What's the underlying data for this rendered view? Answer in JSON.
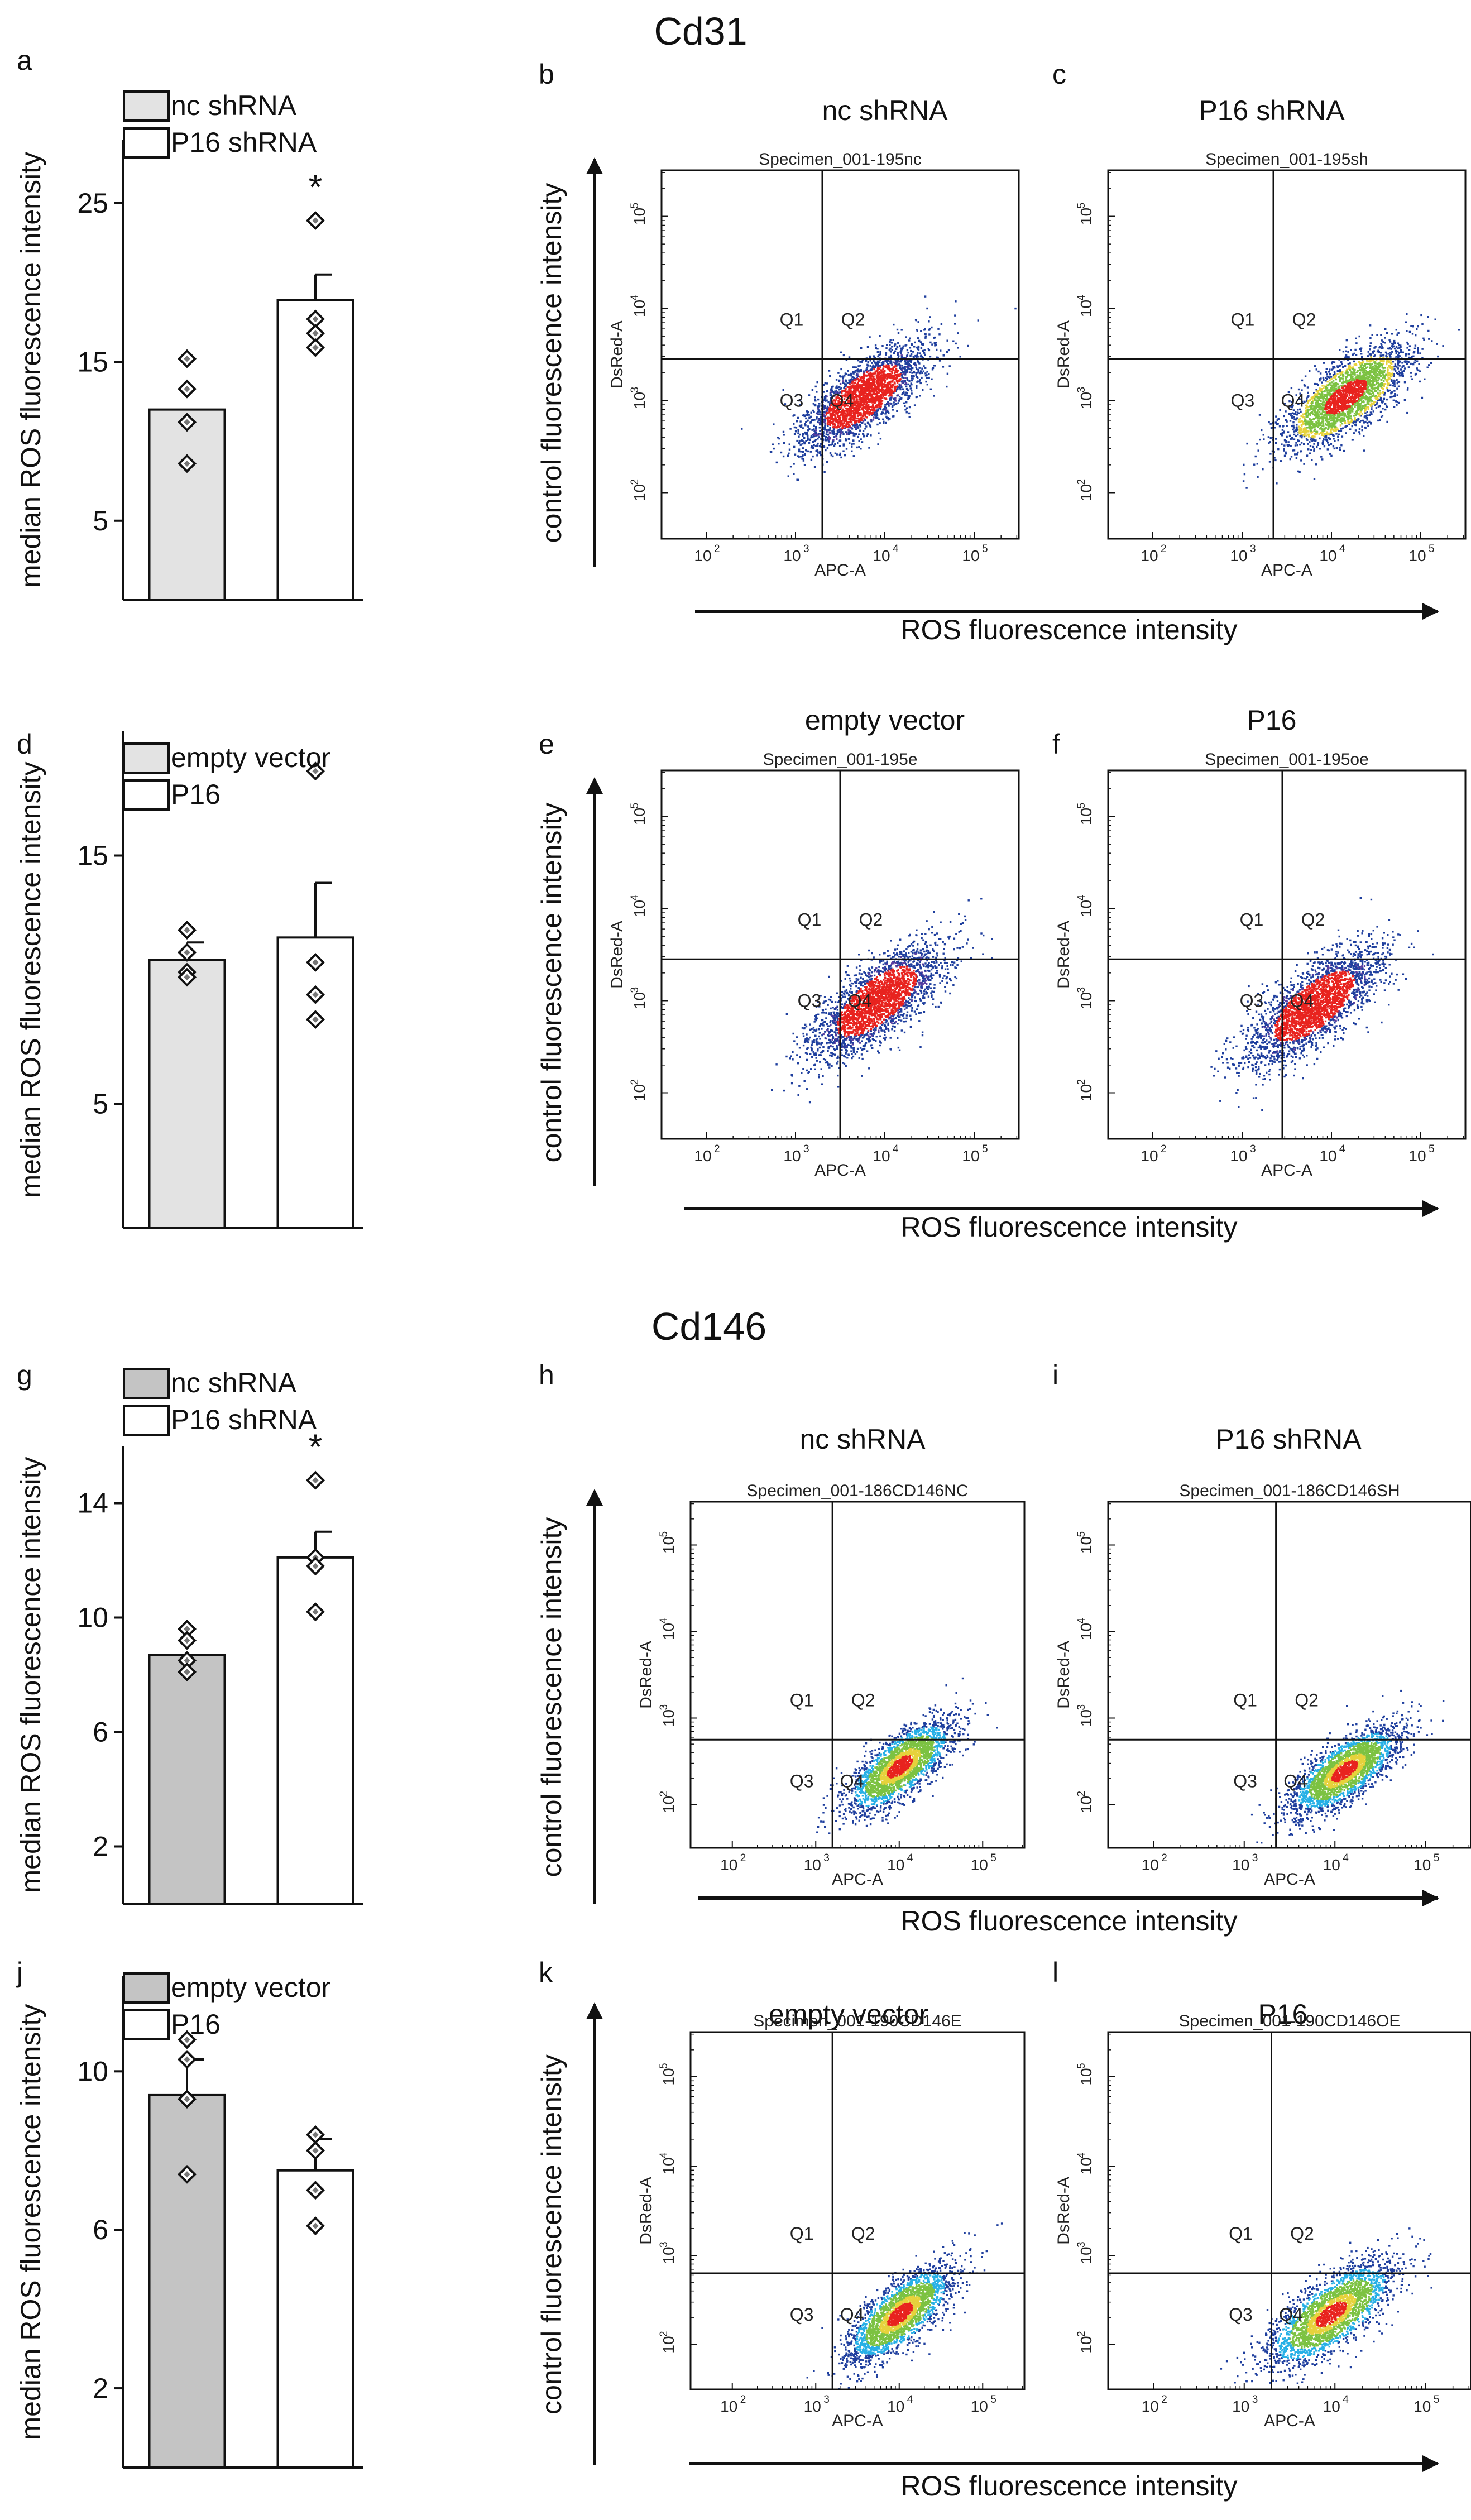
{
  "sections": [
    {
      "title": "Cd31"
    },
    {
      "title": "Cd146"
    }
  ],
  "shared": {
    "ylabel_bar": "median ROS fluorescence intensity",
    "flow_ylabel": "control fluorescence intensity",
    "flow_xlabel": "ROS fluorescence intensity",
    "channel_y": "DsRed-A",
    "channel_x": "APC-A",
    "quadrants": [
      "Q1",
      "Q2",
      "Q3",
      "Q4"
    ],
    "decade_ticks": [
      "2",
      "3",
      "4",
      "5"
    ]
  },
  "colors": {
    "bar_light": "#e3e3e3",
    "bar_mid": "#c4c4c4",
    "bar_white": "#ffffff",
    "dot_blue": "#1f3f9e",
    "dot_red": "#e8231f",
    "dot_green": "#7cc242",
    "dot_cyan": "#27b0e6",
    "dot_yellow": "#e6d23c"
  },
  "chart_data": [
    {
      "type": "bar",
      "panel": "a",
      "ylabel": "median ROS fluorescence intensity",
      "ylim": [
        0,
        29
      ],
      "yticks": [
        5,
        15,
        25
      ],
      "series": [
        {
          "name": "nc shRNA",
          "value": 12.0,
          "err": 0.0,
          "points": [
            15.2,
            13.3,
            11.2,
            8.6
          ],
          "color": "#e3e3e3"
        },
        {
          "name": "P16 shRNA",
          "value": 18.9,
          "err": 1.6,
          "points": [
            23.9,
            17.7,
            16.8,
            15.9
          ],
          "color": "#ffffff"
        }
      ],
      "annotations": [
        "",
        "*"
      ]
    },
    {
      "type": "scatter",
      "panel": "b",
      "label": "nc shRNA",
      "specimen": "Specimen_001-195nc",
      "palette": "redblue",
      "quadrant_gate": [
        3.3,
        3.45
      ],
      "center": [
        3.75,
        3.05
      ],
      "spread": 0.42,
      "slope": 0.75
    },
    {
      "type": "scatter",
      "panel": "c",
      "label": "P16 shRNA",
      "specimen": "Specimen_001-195sh",
      "palette": "greenred",
      "quadrant_gate": [
        3.35,
        3.45
      ],
      "center": [
        4.15,
        3.05
      ],
      "spread": 0.42,
      "slope": 0.75
    },
    {
      "type": "bar",
      "panel": "d",
      "ylabel": "median ROS fluorescence intensity",
      "ylim": [
        0,
        20
      ],
      "yticks": [
        5,
        15
      ],
      "series": [
        {
          "name": "empty vector",
          "value": 10.8,
          "err": 0.7,
          "points": [
            12.0,
            11.1,
            10.3,
            10.1
          ],
          "color": "#e3e3e3"
        },
        {
          "name": "P16",
          "value": 11.7,
          "err": 2.2,
          "points": [
            18.4,
            10.7,
            9.4,
            8.4
          ],
          "color": "#ffffff"
        }
      ],
      "annotations": [
        "",
        ""
      ]
    },
    {
      "type": "scatter",
      "panel": "e",
      "label": "empty vector",
      "specimen": "Specimen_001-195e",
      "palette": "redblue",
      "quadrant_gate": [
        3.5,
        3.45
      ],
      "center": [
        3.9,
        3.0
      ],
      "spread": 0.45,
      "slope": 0.8
    },
    {
      "type": "scatter",
      "panel": "f",
      "label": "P16",
      "specimen": "Specimen_001-195oe",
      "palette": "redblue",
      "quadrant_gate": [
        3.45,
        3.45
      ],
      "center": [
        3.8,
        2.95
      ],
      "spread": 0.45,
      "slope": 0.8
    },
    {
      "type": "bar",
      "panel": "g",
      "ylabel": "median ROS fluorescence intensity",
      "ylim": [
        0,
        16
      ],
      "yticks": [
        2,
        6,
        10,
        14
      ],
      "series": [
        {
          "name": "nc shRNA",
          "value": 8.7,
          "err": 0.0,
          "points": [
            9.6,
            9.2,
            8.5,
            8.1
          ],
          "color": "#c4c4c4"
        },
        {
          "name": "P16 shRNA",
          "value": 12.1,
          "err": 0.9,
          "points": [
            14.8,
            12.1,
            11.8,
            10.2
          ],
          "color": "#ffffff"
        }
      ],
      "annotations": [
        "",
        "*"
      ]
    },
    {
      "type": "scatter",
      "panel": "h",
      "label": "nc shRNA",
      "specimen": "Specimen_001-186CD146NC",
      "palette": "heat",
      "quadrant_gate": [
        3.2,
        2.75
      ],
      "center": [
        4.0,
        2.45
      ],
      "spread": 0.38,
      "slope": 0.8
    },
    {
      "type": "scatter",
      "panel": "i",
      "label": "P16 shRNA",
      "specimen": "Specimen_001-186CD146SH",
      "palette": "heat",
      "quadrant_gate": [
        3.35,
        2.75
      ],
      "center": [
        4.1,
        2.4
      ],
      "spread": 0.36,
      "slope": 0.8
    },
    {
      "type": "bar",
      "panel": "j",
      "ylabel": "median ROS fluorescence intensity",
      "ylim": [
        0,
        12.4
      ],
      "yticks": [
        2,
        6,
        10
      ],
      "series": [
        {
          "name": "empty vector",
          "value": 9.4,
          "err": 0.9,
          "points": [
            10.8,
            10.3,
            9.3,
            7.4
          ],
          "color": "#c4c4c4"
        },
        {
          "name": "P16",
          "value": 7.5,
          "err": 0.8,
          "points": [
            8.4,
            8.0,
            7.0,
            6.1
          ],
          "color": "#ffffff"
        }
      ],
      "annotations": [
        "",
        ""
      ]
    },
    {
      "type": "scatter",
      "panel": "k",
      "label": "empty vector",
      "specimen": "Specimen_001-190CD146E",
      "palette": "heat",
      "quadrant_gate": [
        3.2,
        2.8
      ],
      "center": [
        4.0,
        2.35
      ],
      "spread": 0.38,
      "slope": 0.8
    },
    {
      "type": "scatter",
      "panel": "l",
      "label": "P16",
      "specimen": "Specimen_001-190CD146OE",
      "palette": "heat",
      "quadrant_gate": [
        3.3,
        2.8
      ],
      "center": [
        3.95,
        2.35
      ],
      "spread": 0.42,
      "slope": 0.8
    }
  ]
}
